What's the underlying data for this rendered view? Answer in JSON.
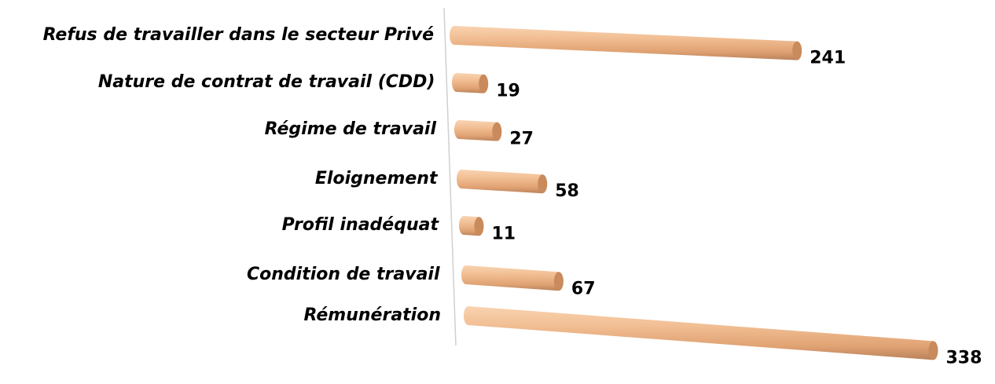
{
  "chart_data": {
    "type": "bar",
    "orientation": "horizontal",
    "categories": [
      "Refus de travailler dans le secteur Privé",
      "Nature de contrat de travail (CDD)",
      "Régime de travail",
      "Eloignement",
      "Profil inadéquat",
      "Condition de travail",
      "Rémunération"
    ],
    "values": [
      241,
      19,
      27,
      58,
      11,
      67,
      338
    ],
    "color": "#e8a878"
  }
}
